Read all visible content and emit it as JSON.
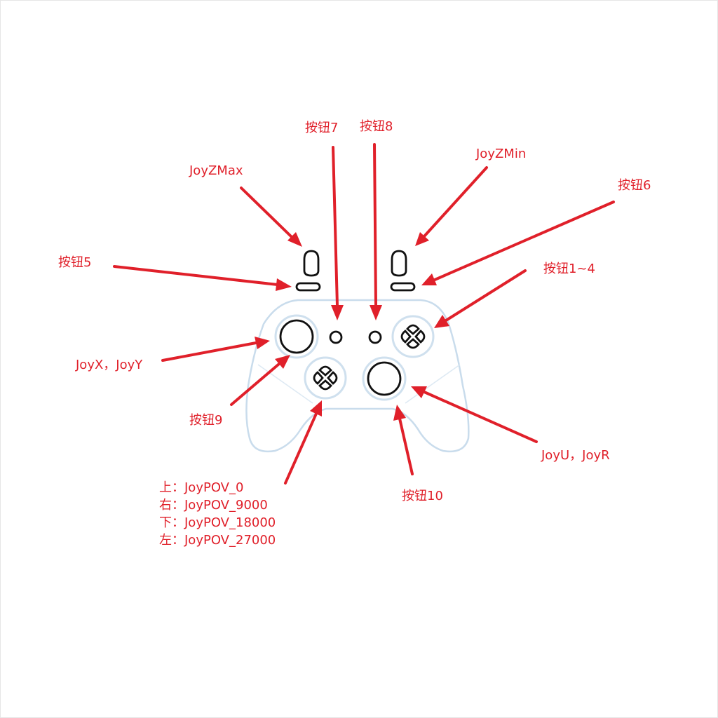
{
  "colors": {
    "annotation": "#e0202a",
    "controller_outline": "#c9dcec",
    "controls": "#111111"
  },
  "labels": {
    "btn7": "按钮7",
    "btn8": "按钮8",
    "joyzmax": "JoyZMax",
    "joyzmin": "JoyZMin",
    "btn6": "按钮6",
    "btn5": "按钮5",
    "btn1_4": "按钮1~4",
    "joyxy": "JoyX，JoyY",
    "btn9": "按钮9",
    "joyur": "JoyU，JoyR",
    "btn10": "按钮10",
    "pov": [
      "上：JoyPOV_0",
      "右：JoyPOV_9000",
      "下：JoyPOV_18000",
      "左：JoyPOV_27000"
    ]
  }
}
